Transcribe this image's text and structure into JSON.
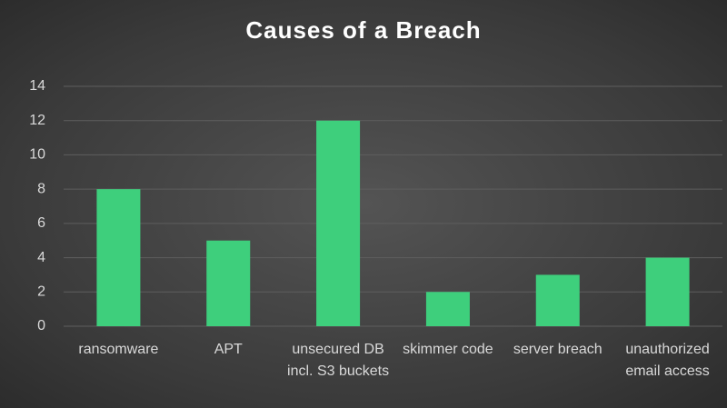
{
  "chart_data": {
    "type": "bar",
    "title": "Causes of a Breach",
    "categories": [
      "ransomware",
      "APT",
      "unsecured DB incl. S3 buckets",
      "skimmer code",
      "server breach",
      "unauthorized email access"
    ],
    "values": [
      8,
      5,
      12,
      2,
      3,
      4
    ],
    "color": "#3ecf7c",
    "ylim": [
      0,
      14
    ],
    "yticks": [
      0,
      2,
      4,
      6,
      8,
      10,
      12,
      14
    ],
    "grid": true
  }
}
